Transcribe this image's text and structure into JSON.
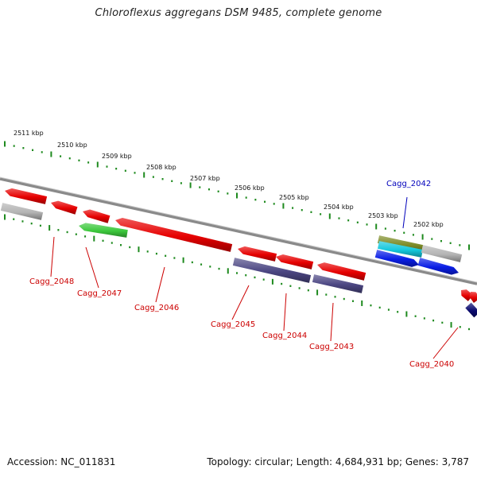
{
  "title": "Chloroflexus aggregans DSM 9485, complete genome",
  "accession": "Accession: NC_011831",
  "summary": "Topology: circular; Length: 4,684,931 bp; Genes: 3,787",
  "colors": {
    "tick": "#1e8a1e",
    "backbone": "#8a8a8a",
    "gene_red": "#e60000",
    "gene_gray": "#b4b4b4",
    "gene_green": "#3cc83c",
    "gene_olive": "#7d8c28",
    "gene_cyan": "#14c8dc",
    "gene_blue": "#0a1ee6",
    "gene_purple": "#4b4682",
    "gene_navy": "#0a0a6e",
    "label_red": "#cc0000",
    "label_blue": "#0000bb"
  },
  "kbp_labels": [
    "2511 kbp",
    "2510 kbp",
    "2509 kbp",
    "2508 kbp",
    "2507 kbp",
    "2506 kbp",
    "2505 kbp",
    "2504 kbp",
    "2503 kbp",
    "2502 kbp"
  ],
  "gene_labels": [
    "Cagg_2048",
    "Cagg_2047",
    "Cagg_2046",
    "Cagg_2045",
    "Cagg_2044",
    "Cagg_2043",
    "Cagg_2042",
    "Cagg_2040"
  ]
}
